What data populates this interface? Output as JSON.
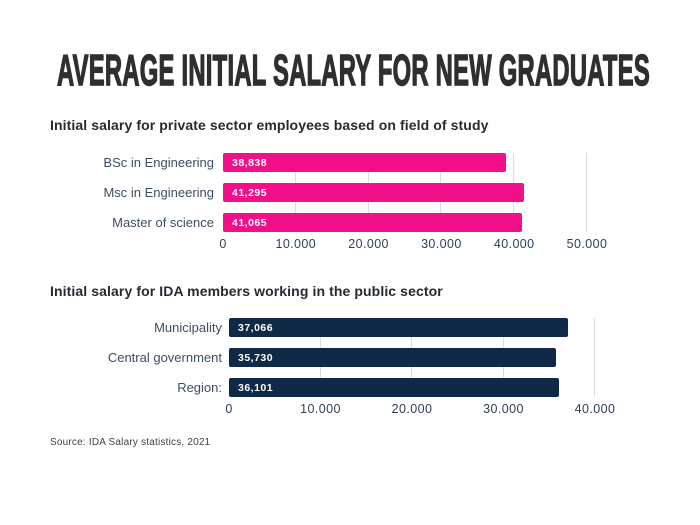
{
  "page": {
    "title": "AVERAGE INITIAL SALARY FOR NEW GRADUATES",
    "source": "Source: IDA Salary statistics, 2021",
    "background": "#ffffff"
  },
  "colors": {
    "pink": "#F2108A",
    "navy": "#0E2A47",
    "title_text": "#2D2F31",
    "heading_text": "#242B31",
    "category_text": "#3E4E63",
    "tick_text": "#2F4156",
    "value_text": "#FFFFFF",
    "gridline": "#DADDE1"
  },
  "chart_data": [
    {
      "type": "bar",
      "orientation": "horizontal",
      "title": "Initial salary for private sector employees based on field of study",
      "categories": [
        "BSc in Engineering",
        "Msc in Engineering",
        "Master of science"
      ],
      "values": [
        38838,
        41295,
        41065
      ],
      "value_labels": [
        "38,838",
        "41,295",
        "41,065"
      ],
      "bar_color": "#F2108A",
      "xlim": [
        0,
        50000
      ],
      "ticks": [
        0,
        10000,
        20000,
        30000,
        40000,
        50000
      ],
      "tick_labels": [
        "0",
        "10.000",
        "20.000",
        "30.000",
        "40.000",
        "50.000"
      ],
      "grid": true,
      "legend": "none"
    },
    {
      "type": "bar",
      "orientation": "horizontal",
      "title": "Initial salary for IDA members working in the public sector",
      "categories": [
        "Municipality",
        "Central government",
        "Region:"
      ],
      "values": [
        37066,
        35730,
        36101
      ],
      "value_labels": [
        "37,066",
        "35,730",
        "36,101"
      ],
      "bar_color": "#0E2A47",
      "xlim": [
        0,
        40000
      ],
      "ticks": [
        0,
        10000,
        20000,
        30000,
        40000
      ],
      "tick_labels": [
        "0",
        "10.000",
        "20.000",
        "30.000",
        "40.000"
      ],
      "grid": true,
      "legend": "none"
    }
  ]
}
